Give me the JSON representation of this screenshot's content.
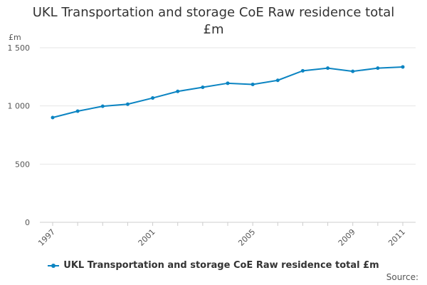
{
  "chart_data": {
    "type": "line",
    "title_lines": [
      "UKL Transportation and storage CoE Raw residence total",
      "£m"
    ],
    "ylabel": "£m",
    "ylim": [
      0,
      1500
    ],
    "yticks": [
      0,
      500,
      1000,
      1500
    ],
    "ytick_labels": [
      "0",
      "500",
      "1 000",
      "1 500"
    ],
    "x": [
      1997,
      1998,
      1999,
      2000,
      2001,
      2002,
      2003,
      2004,
      2005,
      2006,
      2007,
      2008,
      2009,
      2010,
      2011
    ],
    "xtick_labels": [
      "1997",
      "2001",
      "2005",
      "2009",
      "2011"
    ],
    "grid": true,
    "series": [
      {
        "name": "UKL Transportation and storage CoE Raw residence total £m",
        "color": "#0b84c2",
        "values": [
          900,
          955,
          997,
          1015,
          1068,
          1125,
          1160,
          1195,
          1185,
          1220,
          1302,
          1325,
          1297,
          1325,
          1335
        ]
      }
    ],
    "legend_position": "bottom"
  },
  "legend": {
    "label": "UKL Transportation and storage CoE Raw residence total £m"
  },
  "source": {
    "label": "Source:"
  }
}
